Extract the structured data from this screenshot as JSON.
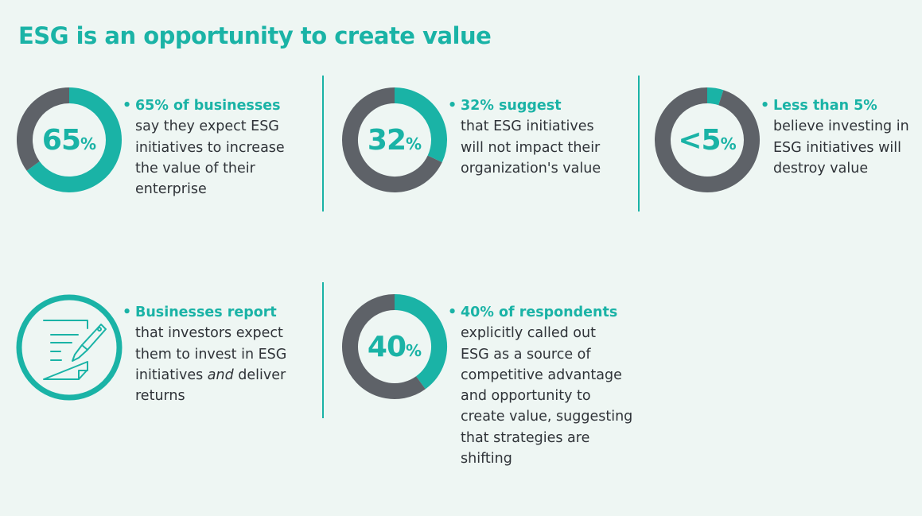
{
  "title": "ESG is an opportunity to create value",
  "colors": {
    "accent": "#1ab3a6",
    "remainder": "#5e6268",
    "background": "#eef6f3"
  },
  "chart_data": [
    {
      "type": "pie",
      "variant": "donut",
      "label": "65",
      "suffix": "%",
      "values": [
        65,
        35
      ],
      "categories": [
        "Expect ESG to increase value",
        "Other"
      ]
    },
    {
      "type": "pie",
      "variant": "donut",
      "label": "32",
      "suffix": "%",
      "values": [
        32,
        68
      ],
      "categories": [
        "No impact on value",
        "Other"
      ]
    },
    {
      "type": "pie",
      "variant": "donut",
      "label": "<5",
      "suffix": "%",
      "values": [
        5,
        95
      ],
      "categories": [
        "ESG will destroy value",
        "Other"
      ]
    },
    {
      "type": "pie",
      "variant": "donut",
      "label": "40",
      "suffix": "%",
      "values": [
        40,
        60
      ],
      "categories": [
        "ESG as competitive advantage",
        "Other"
      ]
    }
  ],
  "stats": [
    {
      "head": "65% of businesses",
      "lines": [
        "say they expect ESG",
        "initiatives to increase",
        "the value of their",
        "enterprise"
      ]
    },
    {
      "head": "32% suggest",
      "lines": [
        "that ESG initiatives",
        "will not impact their",
        "organization's value"
      ]
    },
    {
      "head": "Less than 5%",
      "lines": [
        "believe investing in",
        "ESG initiatives will",
        "destroy value"
      ]
    },
    {
      "head": "Businesses report",
      "lines": [
        "that investors expect",
        "them to invest in ESG"
      ],
      "line3a": "initiatives ",
      "line3em": "and",
      "line3b": " deliver",
      "line4": "returns",
      "icon": "document-pen-icon"
    },
    {
      "head": "40% of respondents",
      "lines": [
        "explicitly called out",
        "ESG as a source of",
        "competitive advantage",
        "and opportunity to",
        "create value, suggesting",
        "that strategies are",
        "shifting"
      ]
    }
  ]
}
